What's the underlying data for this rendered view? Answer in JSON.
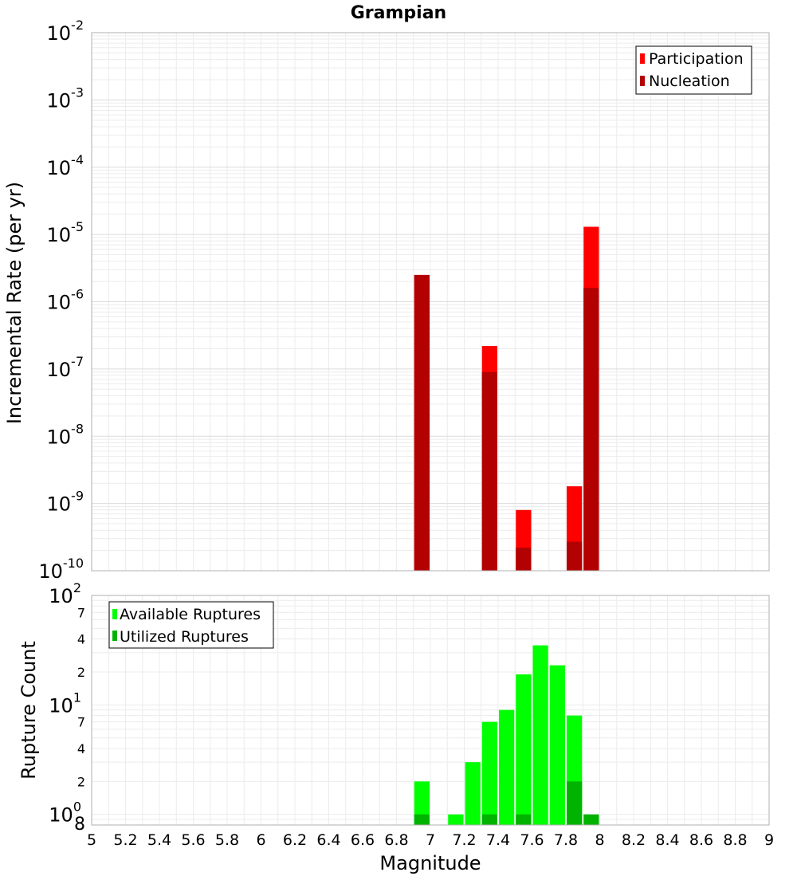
{
  "chart_data": [
    {
      "type": "bar",
      "title": "Grampian",
      "ylabel": "Incremental Rate (per yr)",
      "xlabel": "",
      "xlim": [
        5,
        9
      ],
      "ylim": [
        1e-10,
        0.01
      ],
      "y_scale": "log",
      "y_ticks": [
        {
          "base": "10",
          "exp": "-10",
          "value": 1e-10
        },
        {
          "base": "10",
          "exp": "-9",
          "value": 1e-09
        },
        {
          "base": "10",
          "exp": "-8",
          "value": 1e-08
        },
        {
          "base": "10",
          "exp": "-7",
          "value": 1e-07
        },
        {
          "base": "10",
          "exp": "-6",
          "value": 1e-06
        },
        {
          "base": "10",
          "exp": "-5",
          "value": 1e-05
        },
        {
          "base": "10",
          "exp": "-4",
          "value": 0.0001
        },
        {
          "base": "10",
          "exp": "-3",
          "value": 0.001
        },
        {
          "base": "10",
          "exp": "-2",
          "value": 0.01
        }
      ],
      "grid": true,
      "legend_position": "top-right",
      "series": [
        {
          "name": "Participation",
          "color": "#ff0000",
          "x": [
            6.95,
            7.35,
            7.55,
            7.85,
            7.95
          ],
          "values": [
            2.5e-06,
            2.2e-07,
            8e-10,
            1.8e-09,
            1.3e-05
          ]
        },
        {
          "name": "Nucleation",
          "color": "#b30000",
          "x": [
            6.95,
            7.35,
            7.55,
            7.85,
            7.95
          ],
          "values": [
            2.5e-06,
            9e-08,
            2.2e-10,
            2.7e-10,
            1.6e-06
          ]
        }
      ]
    },
    {
      "type": "bar",
      "ylabel": "Rupture Count",
      "xlabel": "Magnitude",
      "xlim": [
        5,
        9
      ],
      "ylim": [
        0.8,
        100
      ],
      "y_scale": "log",
      "x_ticks": [
        "5",
        "5.2",
        "5.4",
        "5.6",
        "5.8",
        "6",
        "6.2",
        "6.4",
        "6.6",
        "6.8",
        "7",
        "7.2",
        "7.4",
        "7.6",
        "7.8",
        "8",
        "8.2",
        "8.4",
        "8.6",
        "8.8",
        "9"
      ],
      "y_ticks": [
        {
          "base": "10",
          "exp": "0",
          "value": 1
        },
        {
          "base": "10",
          "exp": "1",
          "value": 10
        },
        {
          "base": "10",
          "exp": "2",
          "value": 100
        }
      ],
      "y_minor_labels": [
        {
          "label": "8",
          "value": 0.8
        },
        {
          "label": "2",
          "value": 2
        },
        {
          "label": "4",
          "value": 4
        },
        {
          "label": "7",
          "value": 7
        },
        {
          "label": "2",
          "value": 20
        },
        {
          "label": "4",
          "value": 40
        },
        {
          "label": "7",
          "value": 70
        }
      ],
      "grid": true,
      "legend_position": "top-left",
      "series": [
        {
          "name": "Available Ruptures",
          "color": "#00ff00",
          "x": [
            6.95,
            7.15,
            7.25,
            7.35,
            7.45,
            7.55,
            7.65,
            7.75,
            7.85
          ],
          "values": [
            2,
            1,
            3,
            7,
            9,
            19,
            35,
            23,
            8
          ]
        },
        {
          "name": "Utilized Ruptures",
          "color": "#00b300",
          "x": [
            6.95,
            7.35,
            7.55,
            7.85,
            7.95
          ],
          "values": [
            1,
            1,
            1,
            2,
            1
          ]
        }
      ]
    }
  ]
}
